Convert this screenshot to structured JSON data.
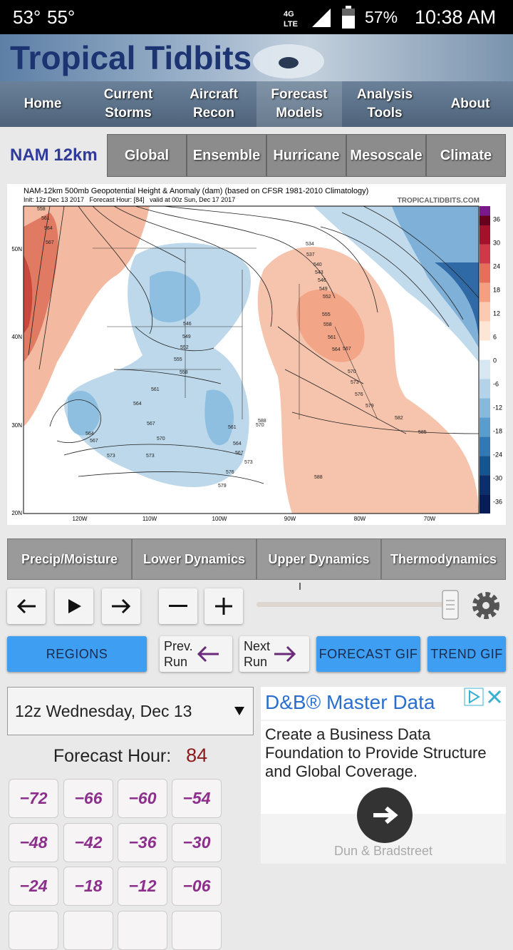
{
  "status": {
    "temps": [
      "53°",
      "55°"
    ],
    "network": [
      "4G",
      "LTE"
    ],
    "battery": "57%",
    "time": "10:38 AM"
  },
  "header": {
    "logo": "Tropical Tidbits"
  },
  "nav": [
    "Home",
    "Current Storms",
    "Aircraft Recon",
    "Forecast Models",
    "Analysis Tools",
    "About"
  ],
  "model_bar": {
    "current": "NAM 12km",
    "tabs": [
      "Global",
      "Ensemble",
      "Hurricane",
      "Mesoscale",
      "Climate"
    ]
  },
  "map": {
    "title": "NAM-12km 500mb Geopotential Height & Anomaly (dam) (based on CFSR 1981-2010 Climatology)",
    "init": "Init: 12z Dec 13 2017   Forecast Hour: [84]   valid at 00z Sun, Dec 17 2017",
    "site": "TROPICALTIDBITS.COM",
    "colorbar": [
      "36",
      "30",
      "24",
      "18",
      "12",
      "6",
      "0",
      "-6",
      "-12",
      "-18",
      "-24",
      "-30",
      "-36"
    ],
    "lat": [
      "50N",
      "40N",
      "30N",
      "20N"
    ],
    "lon": [
      "120W",
      "110W",
      "100W",
      "90W",
      "80W",
      "70W"
    ],
    "contours": [
      "558",
      "561",
      "564",
      "567",
      "546",
      "549",
      "552",
      "555",
      "558",
      "561",
      "564",
      "567",
      "570",
      "573",
      "564",
      "567",
      "573",
      "561",
      "564",
      "567",
      "573",
      "576",
      "579",
      "570",
      "534",
      "537",
      "540",
      "543",
      "546",
      "549",
      "552",
      "555",
      "558",
      "561",
      "564",
      "567",
      "570",
      "573",
      "576",
      "579",
      "582",
      "585",
      "588",
      "588"
    ]
  },
  "categories": [
    "Precip/Moisture",
    "Lower Dynamics",
    "Upper Dynamics",
    "Thermodynamics"
  ],
  "buttons": {
    "regions": "REGIONS",
    "prev": [
      "Prev.",
      "Run"
    ],
    "next": [
      "Next",
      "Run"
    ],
    "forecast_gif": "FORECAST GIF",
    "trend_gif": "TREND GIF"
  },
  "date_select": "12z Wednesday, Dec 13",
  "forecast_hour": {
    "label": "Forecast Hour:",
    "value": "84"
  },
  "hour_buttons": [
    "−72",
    "−66",
    "−60",
    "−54",
    "−48",
    "−42",
    "−36",
    "−30",
    "−24",
    "−18",
    "−12",
    "−06"
  ],
  "ad": {
    "title": "D&B® Master Data",
    "body": "Create a Business Data Foundation to Provide Structure and Global Coverage.",
    "sponsor": "Dun & Bradstreet"
  }
}
